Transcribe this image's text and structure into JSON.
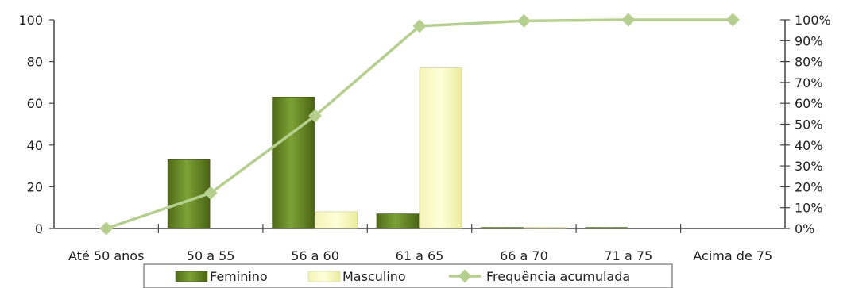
{
  "chart_data": {
    "type": "bar",
    "categories": [
      "Até 50 anos",
      "50 a 55",
      "56 a 60",
      "61 a 65",
      "66 a 70",
      "71 a 75",
      "Acima de 75"
    ],
    "series": [
      {
        "name": "Feminino",
        "type": "bar",
        "axis": "left",
        "values": [
          0,
          33,
          63,
          7,
          0.5,
          0.5,
          0
        ],
        "color": "#6b8e23"
      },
      {
        "name": "Masculino",
        "type": "bar",
        "axis": "left",
        "values": [
          0,
          0,
          8,
          77,
          0.5,
          0,
          0
        ],
        "color": "#ffffcc"
      },
      {
        "name": "Frequência acumulada",
        "type": "line",
        "axis": "right",
        "values": [
          0,
          0.17,
          0.54,
          0.97,
          0.995,
          1.0,
          1.0
        ],
        "color": "#b5cf8f"
      }
    ],
    "y_left": {
      "min": 0,
      "max": 100,
      "ticks": [
        "0",
        "20",
        "40",
        "60",
        "80",
        "100"
      ]
    },
    "y_right": {
      "min": 0,
      "max": 1,
      "ticks": [
        "0%",
        "10%",
        "20%",
        "30%",
        "40%",
        "50%",
        "60%",
        "70%",
        "80%",
        "90%",
        "100%"
      ]
    },
    "legend": {
      "position": "bottom"
    },
    "grid": false
  }
}
